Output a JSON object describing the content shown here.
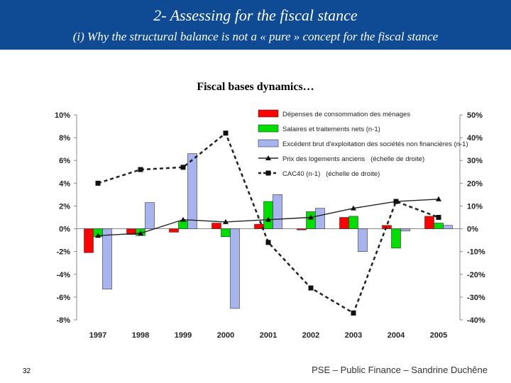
{
  "header": {
    "title": "2- Assessing for the fiscal stance",
    "subtitle": "(i) Why the structural balance is not a « pure » concept for the fiscal stance"
  },
  "footer": {
    "page_number": "32",
    "credit": "PSE – Public Finance – Sandrine Duchêne"
  },
  "chart_data": {
    "type": "bar",
    "title": "Fiscal bases dynamics…",
    "categories": [
      "1997",
      "1998",
      "1999",
      "2000",
      "2001",
      "2002",
      "2003",
      "2004",
      "2005"
    ],
    "y_left": {
      "ylim": [
        -8,
        10
      ],
      "ticks": [
        "10%",
        "8%",
        "6%",
        "4%",
        "2%",
        "0%",
        "-2%",
        "-4%",
        "-6%",
        "-8%"
      ]
    },
    "y_right": {
      "ylim": [
        -40,
        50
      ],
      "ticks": [
        "50%",
        "40%",
        "30%",
        "20%",
        "10%",
        "0%",
        "-10%",
        "-20%",
        "-30%",
        "-40%"
      ]
    },
    "series": [
      {
        "name": "Dépenses de consommation des ménages",
        "kind": "bar",
        "axis": "left",
        "color": "#ff0000",
        "values": [
          -2.1,
          -0.5,
          -0.3,
          0.5,
          0.4,
          -0.1,
          1.0,
          0.3,
          1.1
        ]
      },
      {
        "name": "Salaires et traitements nets (n-1)",
        "kind": "bar",
        "axis": "left",
        "color": "#00dd00",
        "values": [
          -0.7,
          -0.6,
          0.7,
          -0.7,
          2.4,
          1.5,
          1.1,
          -1.7,
          0.5
        ]
      },
      {
        "name": "Excédent brut d'exploitation des sociétés non financières (n-1)",
        "kind": "bar",
        "axis": "left",
        "color": "#a8b4f0",
        "values": [
          -5.3,
          2.3,
          6.6,
          -7.0,
          3.0,
          1.8,
          -2.0,
          -0.2,
          0.3
        ]
      },
      {
        "name": "Prix des logements anciens   (échelle de droite)",
        "kind": "line",
        "axis": "right",
        "color": "#222222",
        "marker": "triangle",
        "values": [
          -3,
          -2,
          4,
          3,
          4,
          5,
          9,
          12,
          13
        ]
      },
      {
        "name": "CAC40 (n-1)   (échelle de droite)",
        "kind": "line",
        "axis": "right",
        "color": "#222222",
        "marker": "square",
        "dashed": true,
        "values": [
          20,
          26,
          27,
          42,
          -6,
          -26,
          -37,
          12,
          5
        ]
      }
    ],
    "grid": false,
    "legend": "top-right"
  }
}
